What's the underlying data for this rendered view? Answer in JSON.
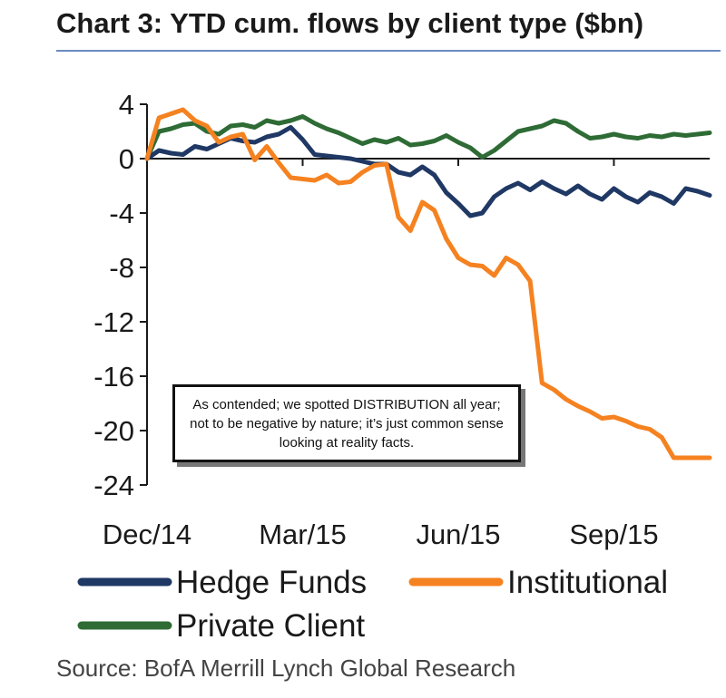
{
  "title": "Chart 3: YTD cum. flows by client type ($bn)",
  "source": "Source: BofA Merrill Lynch Global Research",
  "callout": "As contended; we spotted DISTRIBUTION all year; not to be negative by nature; it’s just common sense looking at reality facts.",
  "colors": {
    "hedge_funds": "#1f3864",
    "institutional": "#f58220",
    "private_client": "#2e6b35",
    "axis": "#1a1a1a",
    "title_rule": "#6b8bbf"
  },
  "chart_data": {
    "type": "line",
    "title": "Chart 3: YTD cum. flows by client type ($bn)",
    "xlabel": "",
    "ylabel": "",
    "x_unit": "weeks since Dec/14",
    "x_tick_labels": [
      "Dec/14",
      "Mar/15",
      "Jun/15",
      "Sep/15"
    ],
    "x_tick_positions": [
      0,
      13,
      26,
      39
    ],
    "ylim": [
      -24,
      4
    ],
    "yticks": [
      4,
      0,
      -4,
      -8,
      -12,
      -16,
      -20,
      -24
    ],
    "ytick_labels": [
      "4",
      "0",
      "-4",
      "-8",
      "-12",
      "-16",
      "-20",
      "-24"
    ],
    "grid": false,
    "legend_position": "bottom",
    "x": [
      0,
      1,
      2,
      3,
      4,
      5,
      6,
      7,
      8,
      9,
      10,
      11,
      12,
      13,
      14,
      15,
      16,
      17,
      18,
      19,
      20,
      21,
      22,
      23,
      24,
      25,
      26,
      27,
      28,
      29,
      30,
      31,
      32,
      33,
      34,
      35,
      36,
      37,
      38,
      39,
      40,
      41,
      42,
      43,
      44,
      45,
      46,
      47
    ],
    "series": [
      {
        "name": "Hedge Funds",
        "color": "#1f3864",
        "values": [
          0,
          0.6,
          0.4,
          0.3,
          0.9,
          0.7,
          1.1,
          1.5,
          1.3,
          1.2,
          1.6,
          1.8,
          2.3,
          1.4,
          0.3,
          0.2,
          0.1,
          0,
          -0.2,
          -0.4,
          -0.4,
          -1.0,
          -1.2,
          -0.6,
          -1.2,
          -2.5,
          -3.3,
          -4.2,
          -4.0,
          -2.8,
          -2.2,
          -1.8,
          -2.3,
          -1.7,
          -2.2,
          -2.6,
          -2.0,
          -2.6,
          -3.0,
          -2.2,
          -2.8,
          -3.2,
          -2.5,
          -2.8,
          -3.3,
          -2.2,
          -2.4,
          -2.7
        ]
      },
      {
        "name": "Institutional",
        "color": "#f58220",
        "values": [
          0,
          3.0,
          3.3,
          3.6,
          2.8,
          2.4,
          1.2,
          1.6,
          1.8,
          -0.1,
          0.9,
          -0.3,
          -1.4,
          -1.5,
          -1.6,
          -1.2,
          -1.8,
          -1.7,
          -1.0,
          -0.5,
          -0.4,
          -4.3,
          -5.3,
          -3.2,
          -3.8,
          -5.9,
          -7.3,
          -7.8,
          -7.9,
          -8.6,
          -7.3,
          -7.8,
          -9.0,
          -16.5,
          -17.0,
          -17.7,
          -18.2,
          -18.6,
          -19.1,
          -19.0,
          -19.3,
          -19.7,
          -19.9,
          -20.5,
          -22.0,
          -22.0,
          -22.0,
          -22.0
        ]
      },
      {
        "name": "Private Client",
        "color": "#2e6b35",
        "values": [
          0,
          2.0,
          2.2,
          2.5,
          2.6,
          2.0,
          1.8,
          2.4,
          2.5,
          2.3,
          2.8,
          2.6,
          2.8,
          3.1,
          2.6,
          2.2,
          1.9,
          1.5,
          1.1,
          1.4,
          1.2,
          1.5,
          1.0,
          1.1,
          1.3,
          1.7,
          1.2,
          0.8,
          0.1,
          0.6,
          1.3,
          2.0,
          2.2,
          2.4,
          2.8,
          2.6,
          2.0,
          1.5,
          1.6,
          1.8,
          1.6,
          1.5,
          1.7,
          1.6,
          1.8,
          1.7,
          1.8,
          1.9
        ]
      }
    ]
  }
}
